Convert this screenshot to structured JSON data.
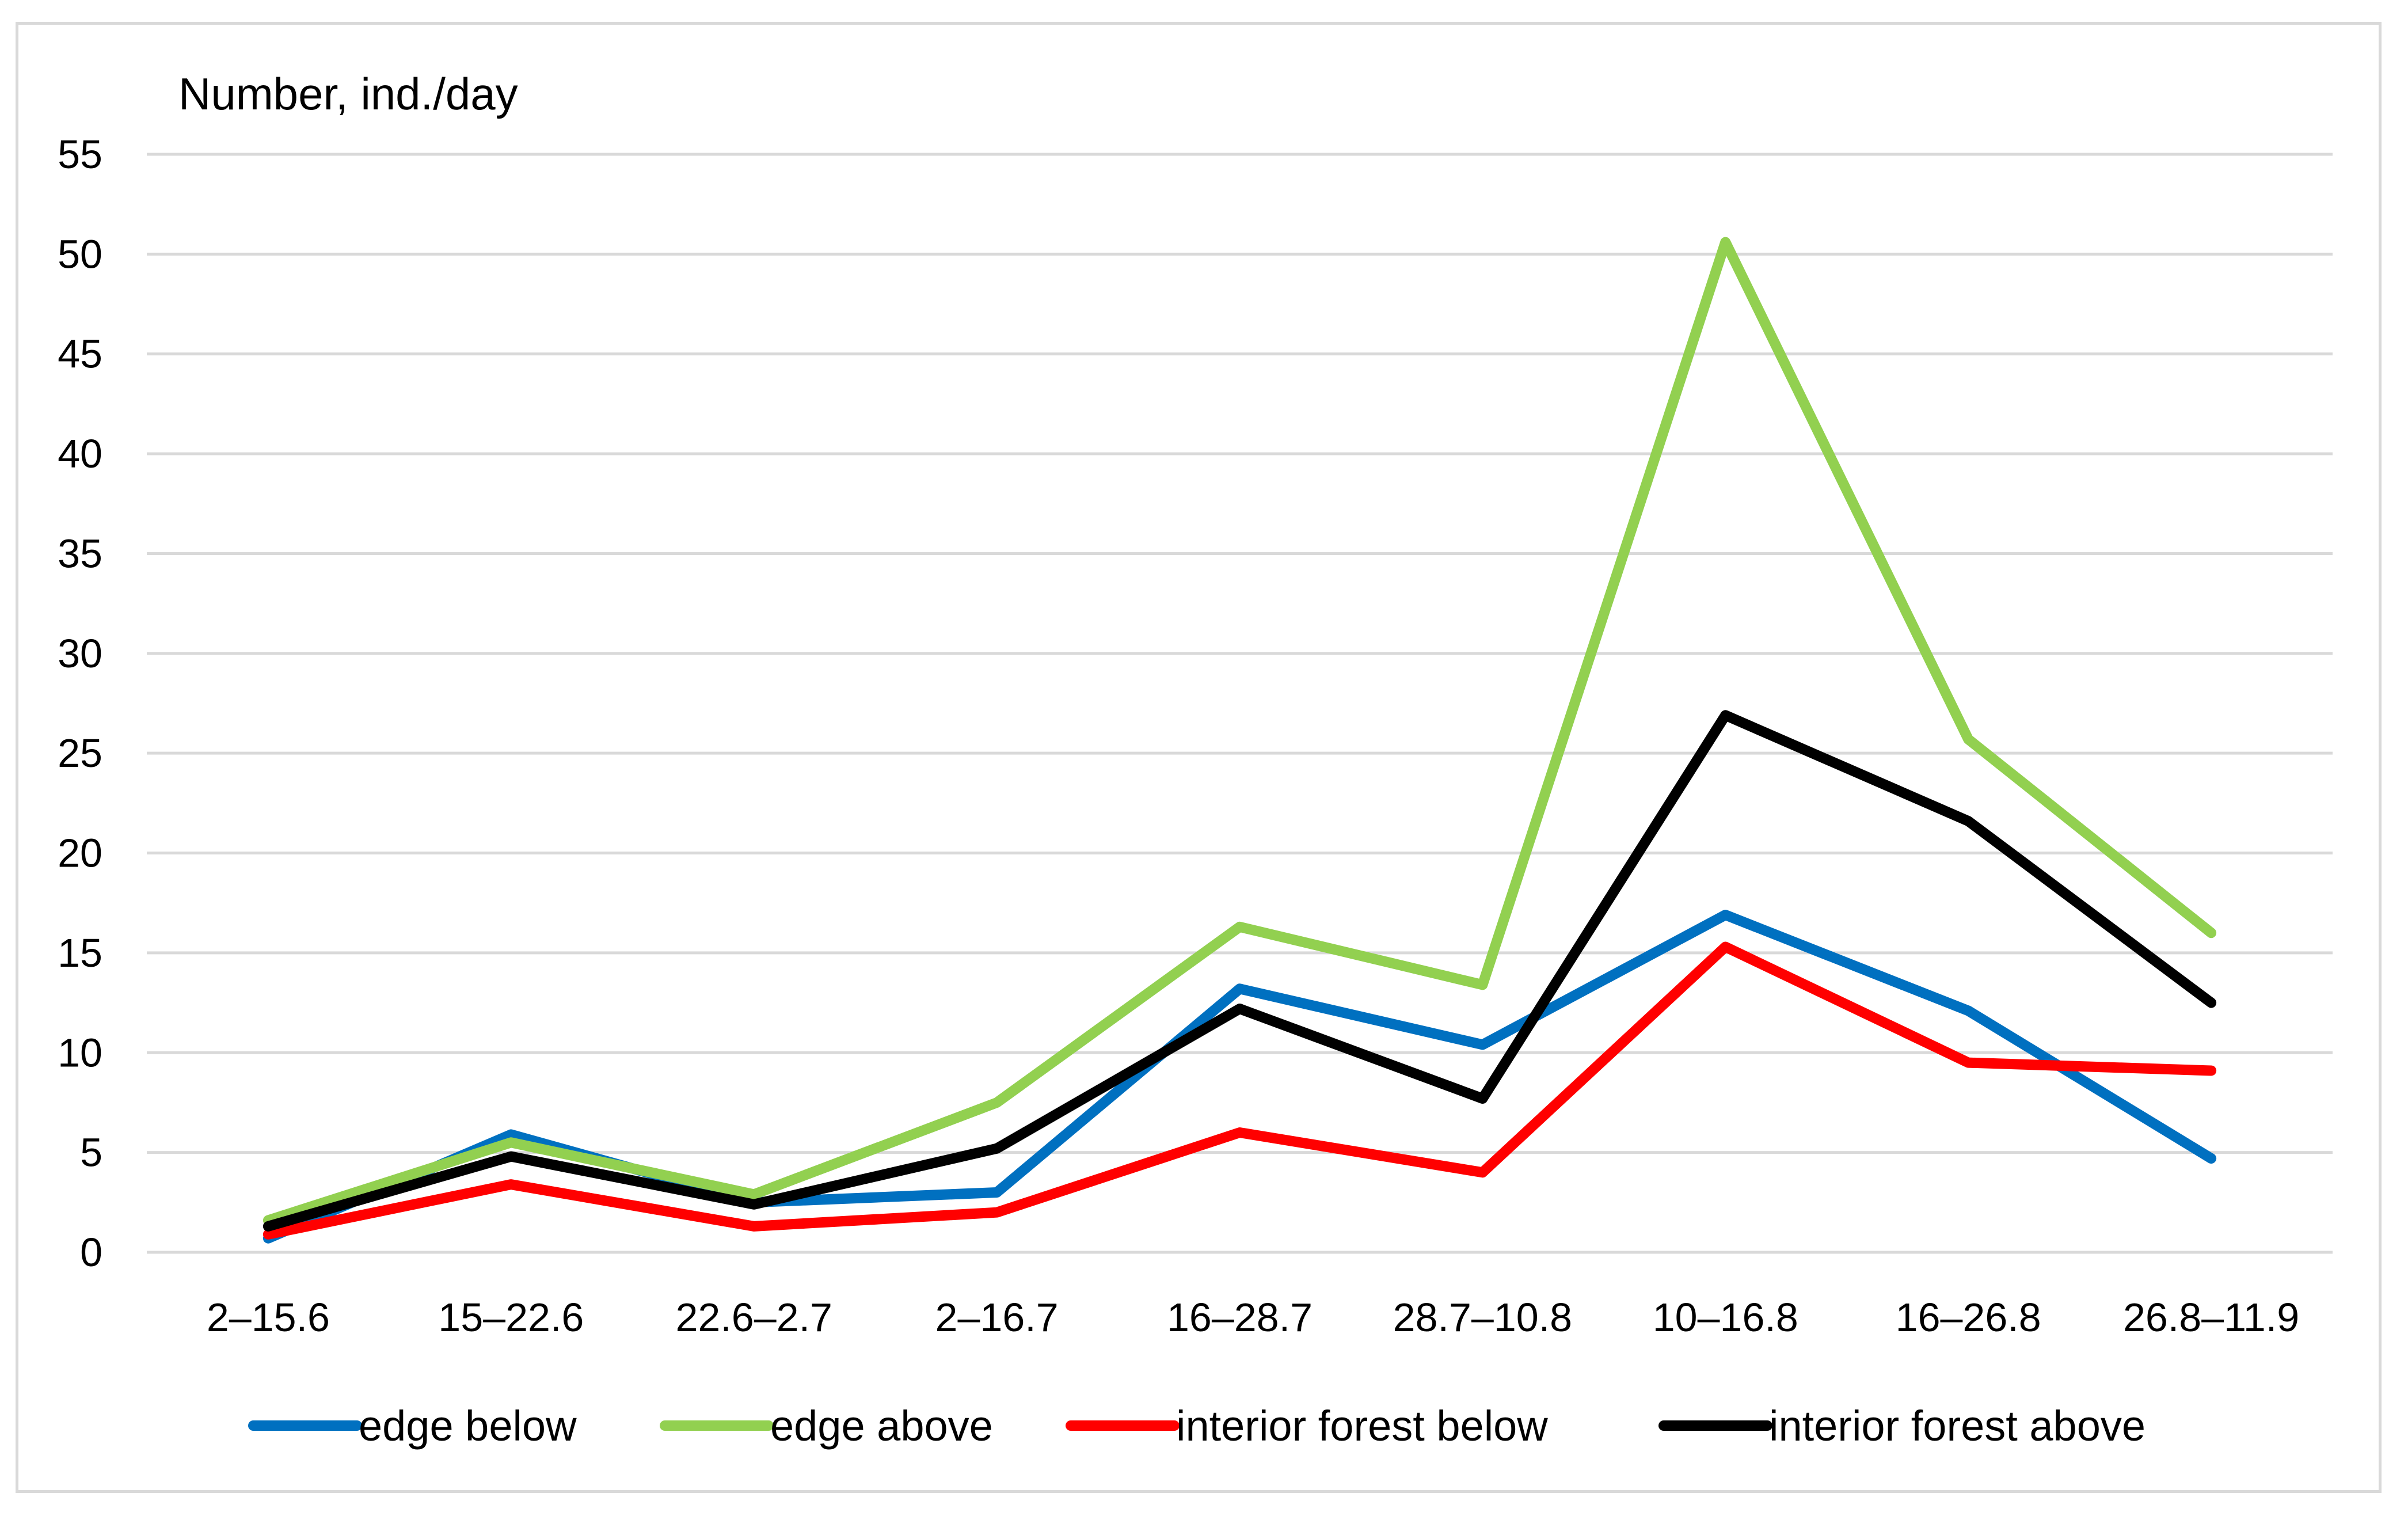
{
  "chart_data": {
    "type": "line",
    "title": "",
    "ylabel": "Number, ind./day",
    "xlabel": "",
    "categories": [
      "2–15.6",
      "15–22.6",
      "22.6–2.7",
      "2–16.7",
      "16–28.7",
      "28.7–10.8",
      "10–16.8",
      "16–26.8",
      "26.8–11.9"
    ],
    "ylim": [
      0,
      55
    ],
    "yticks": [
      0,
      5,
      10,
      15,
      20,
      25,
      30,
      35,
      40,
      45,
      50,
      55
    ],
    "grid": true,
    "legend_position": "bottom",
    "series": [
      {
        "name": "edge below",
        "color": "#0070c0",
        "values": [
          0.7,
          5.9,
          2.5,
          3.0,
          13.2,
          10.4,
          16.9,
          12.1,
          4.7
        ]
      },
      {
        "name": "edge above",
        "color": "#92d050",
        "values": [
          1.6,
          5.5,
          2.9,
          7.5,
          16.3,
          13.4,
          50.6,
          25.7,
          16.0
        ]
      },
      {
        "name": "interior forest below",
        "color": "#ff0000",
        "values": [
          0.9,
          3.4,
          1.3,
          2.0,
          6.0,
          4.0,
          15.3,
          9.5,
          9.1
        ]
      },
      {
        "name": "interior forest above",
        "color": "#000000",
        "values": [
          1.3,
          4.8,
          2.4,
          5.2,
          12.2,
          7.7,
          26.9,
          21.6,
          12.5
        ]
      }
    ]
  }
}
